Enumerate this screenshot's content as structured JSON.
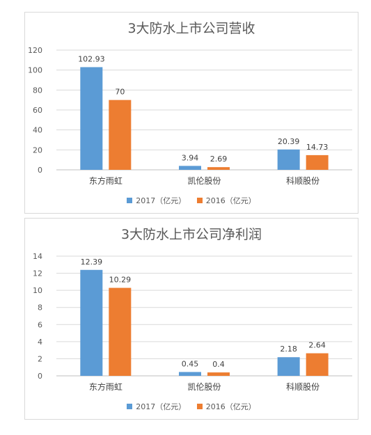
{
  "colors": {
    "s2017": "#5b9bd5",
    "s2016": "#ed7d31"
  },
  "legend": {
    "s2017": "2017（亿元）",
    "s2016": "2016（亿元）"
  },
  "chart_data": [
    {
      "type": "bar",
      "title": "3大防水上市公司营收",
      "categories": [
        "东方雨虹",
        "凯伦股份",
        "科顺股份"
      ],
      "series": [
        {
          "name": "2017（亿元）",
          "values": [
            102.93,
            3.94,
            20.39
          ]
        },
        {
          "name": "2016（亿元）",
          "values": [
            70,
            2.69,
            14.73
          ]
        }
      ],
      "data_labels": [
        [
          "102.93",
          "3.94",
          "20.39"
        ],
        [
          "70",
          "2.69",
          "14.73"
        ]
      ],
      "ylim": [
        0,
        120
      ],
      "yticks": [
        0,
        20,
        40,
        60,
        80,
        100,
        120
      ],
      "grid": true,
      "legend_position": "bottom"
    },
    {
      "type": "bar",
      "title": "3大防水上市公司净利润",
      "categories": [
        "东方雨虹",
        "凯伦股份",
        "科顺股份"
      ],
      "series": [
        {
          "name": "2017（亿元）",
          "values": [
            12.39,
            0.45,
            2.18
          ]
        },
        {
          "name": "2016（亿元）",
          "values": [
            10.29,
            0.4,
            2.64
          ]
        }
      ],
      "data_labels": [
        [
          "12.39",
          "0.45",
          "2.18"
        ],
        [
          "10.29",
          "0.4",
          "2.64"
        ]
      ],
      "ylim": [
        0,
        14
      ],
      "yticks": [
        0,
        2,
        4,
        6,
        8,
        10,
        12,
        14
      ],
      "grid": true,
      "legend_position": "bottom"
    }
  ]
}
